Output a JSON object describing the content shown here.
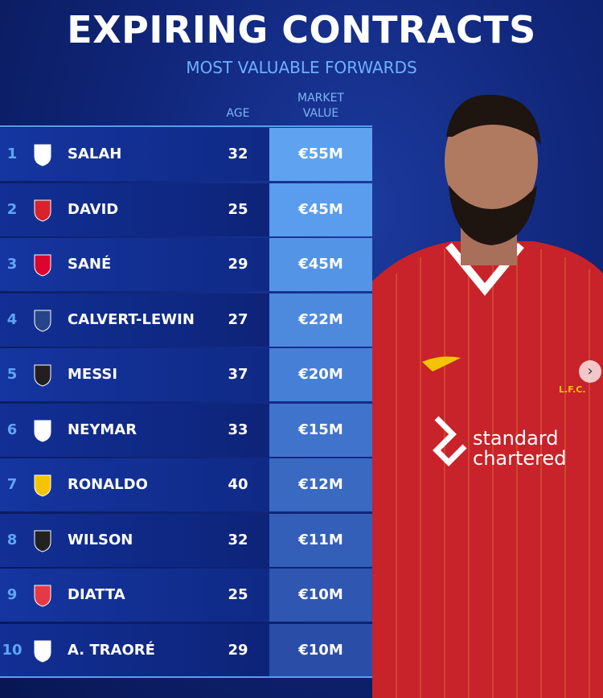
{
  "header": {
    "title": "EXPIRING CONTRACTS",
    "subtitle": "MOST VALUABLE FORWARDS"
  },
  "columns": {
    "age": "AGE",
    "market_value_line1": "MARKET",
    "market_value_line2": "VALUE"
  },
  "chart_data": {
    "type": "table",
    "title": "EXPIRING CONTRACTS",
    "subtitle": "MOST VALUABLE FORWARDS",
    "columns": [
      "",
      "",
      "",
      "AGE",
      "MARKET VALUE"
    ],
    "rows": [
      {
        "rank": "1",
        "club": "liverpool-crest",
        "name": "SALAH",
        "age": "32",
        "value": "€55M",
        "color": "#5fa3f0"
      },
      {
        "rank": "2",
        "club": "lille-crest",
        "name": "DAVID",
        "age": "25",
        "value": "€45M",
        "color": "#5a9ced"
      },
      {
        "rank": "3",
        "club": "bayern-crest",
        "name": "SANÉ",
        "age": "29",
        "value": "€45M",
        "color": "#5494e6"
      },
      {
        "rank": "4",
        "club": "everton-crest",
        "name": "CALVERT-LEWIN",
        "age": "27",
        "value": "€22M",
        "color": "#4d8ade"
      },
      {
        "rank": "5",
        "club": "inter-miami-crest",
        "name": "MESSI",
        "age": "37",
        "value": "€20M",
        "color": "#467fd6"
      },
      {
        "rank": "6",
        "club": "santos-crest",
        "name": "NEYMAR",
        "age": "33",
        "value": "€15M",
        "color": "#4074cc"
      },
      {
        "rank": "7",
        "club": "al-nassr-crest",
        "name": "RONALDO",
        "age": "40",
        "value": "€12M",
        "color": "#3a69c2"
      },
      {
        "rank": "8",
        "club": "newcastle-crest",
        "name": "WILSON",
        "age": "32",
        "value": "€11M",
        "color": "#345fb8"
      },
      {
        "rank": "9",
        "club": "monaco-crest",
        "name": "DIATTA",
        "age": "25",
        "value": "€10M",
        "color": "#2f56b0"
      },
      {
        "rank": "10",
        "club": "fulham-crest",
        "name": "A. TRAORÉ",
        "age": "29",
        "value": "€10M",
        "color": "#2a4ea8"
      }
    ]
  },
  "photo": {
    "sponsor_line1": "standard",
    "sponsor_line2": "chartered",
    "badge": "L.F.C."
  },
  "carousel": {
    "next_icon": "chevron-right-icon"
  }
}
